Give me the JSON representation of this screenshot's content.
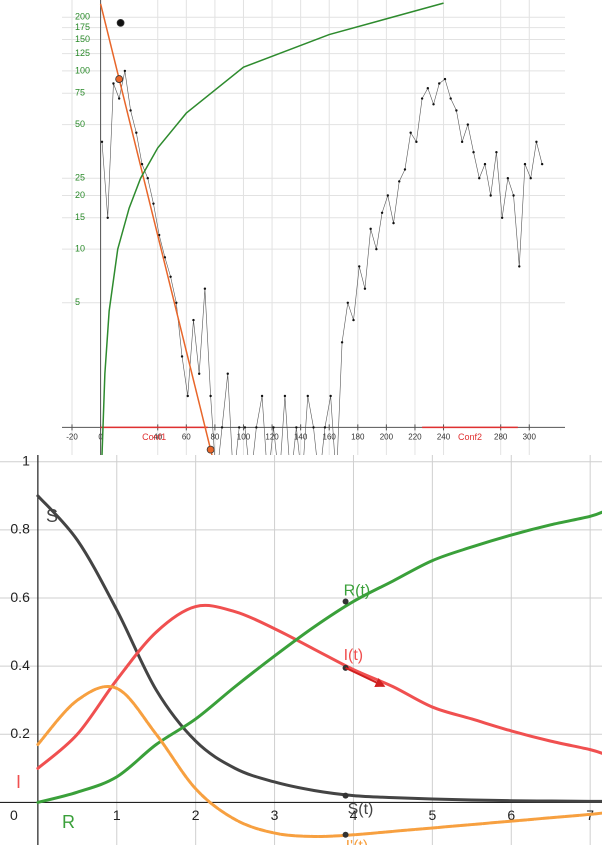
{
  "chart_data": [
    {
      "type": "line",
      "log_scale": true,
      "grid": true,
      "xlim": [
        -27,
        325
      ],
      "ylim": [
        0.7,
        250
      ],
      "xticks": [
        -20,
        0,
        40,
        60,
        80,
        100,
        120,
        140,
        160,
        180,
        200,
        220,
        240,
        280,
        300
      ],
      "yticks": [
        5,
        10,
        15,
        20,
        25,
        50,
        75,
        100,
        125,
        150,
        175,
        200
      ],
      "tick_color": "#2a8a2a",
      "series": [
        {
          "color": "#555555",
          "dots": true,
          "x": [
            1,
            5,
            9,
            13,
            17,
            21,
            25,
            29,
            33,
            37,
            41,
            45,
            49,
            53,
            57,
            61,
            65,
            69,
            73,
            77,
            81,
            85,
            89,
            93,
            97,
            101,
            105,
            109,
            113,
            117,
            121,
            125,
            129,
            133,
            137,
            141,
            145,
            149,
            153,
            157,
            161,
            165,
            169,
            173,
            177,
            181,
            185,
            189,
            193,
            197,
            201,
            205,
            209,
            213,
            217,
            221,
            225,
            229,
            233,
            237,
            241,
            245,
            249,
            253,
            257,
            261,
            265,
            269,
            273,
            277,
            281,
            285,
            289,
            293,
            297,
            301,
            305,
            309
          ],
          "values": [
            40,
            15,
            85,
            70,
            100,
            60,
            45,
            30,
            25,
            18,
            12,
            9,
            7,
            5,
            2.5,
            1.5,
            4,
            2,
            6,
            1.5,
            0.5,
            1,
            2,
            0.5,
            1,
            1,
            0.5,
            1,
            1.5,
            0.5,
            1,
            0.5,
            1.5,
            0.5,
            1,
            0.5,
            1.5,
            1,
            0.5,
            1,
            1.5,
            0.5,
            3,
            5,
            4,
            8,
            6,
            13,
            10,
            16,
            20,
            14,
            24,
            28,
            45,
            40,
            70,
            80,
            65,
            85,
            90,
            70,
            60,
            40,
            50,
            35,
            25,
            30,
            20,
            35,
            15,
            25,
            20,
            8,
            30,
            25,
            40,
            30
          ]
        },
        {
          "color": "#e8662a",
          "x": [
            0,
            80
          ],
          "values": [
            238,
            0.6
          ]
        },
        {
          "color": "#2e8b2e",
          "x": [
            1,
            3,
            6,
            12,
            20,
            28,
            40,
            60,
            100,
            160,
            240
          ],
          "values": [
            0.7,
            2,
            4.5,
            10,
            17,
            25,
            37,
            58,
            105,
            160,
            240
          ]
        }
      ],
      "points": [
        {
          "x": 13,
          "value": 90,
          "color": "#e8662a"
        },
        {
          "x": 77,
          "value": 0.75,
          "color": "#e8662a"
        },
        {
          "x": 14,
          "value": 186,
          "color": "#111111"
        }
      ],
      "spans": [
        {
          "label": "Conf1",
          "start": 0,
          "end": 75
        },
        {
          "label": "Conf2",
          "start": 225,
          "end": 292
        }
      ],
      "span_color": "#e03030"
    },
    {
      "type": "line",
      "grid": true,
      "xlim": [
        -0.48,
        7.15
      ],
      "ylim": [
        -0.125,
        1.02
      ],
      "xticks": [
        0,
        1,
        2,
        3,
        4,
        5,
        6,
        7
      ],
      "yticks": [
        0.2,
        0.4,
        0.6,
        0.8,
        1
      ],
      "x": [
        0,
        0.5,
        1,
        1.5,
        2,
        2.5,
        3,
        3.5,
        4,
        4.5,
        5,
        5.5,
        6,
        6.5,
        7,
        7.2
      ],
      "marker_x": 3.9,
      "series": [
        {
          "name": "S",
          "point_label": "S(t)",
          "color": "#444444",
          "marker_value": 0.02,
          "values": [
            0.9,
            0.77,
            0.565,
            0.33,
            0.18,
            0.1,
            0.06,
            0.035,
            0.02,
            0.014,
            0.01,
            0.007,
            0.005,
            0.004,
            0.003,
            0.003
          ]
        },
        {
          "name": "I",
          "point_label": "I(t)",
          "color": "#f05050",
          "marker_value": 0.395,
          "values": [
            0.1,
            0.2,
            0.36,
            0.5,
            0.575,
            0.56,
            0.51,
            0.45,
            0.39,
            0.34,
            0.28,
            0.245,
            0.21,
            0.18,
            0.155,
            0.14
          ]
        },
        {
          "name": "R",
          "point_label": "R(t)",
          "color": "#3aa03a",
          "marker_value": 0.59,
          "values": [
            0,
            0.03,
            0.075,
            0.17,
            0.245,
            0.34,
            0.43,
            0.515,
            0.59,
            0.65,
            0.71,
            0.75,
            0.785,
            0.815,
            0.84,
            0.857
          ]
        },
        {
          "point_label": "I'(t)",
          "color": "#f7a040",
          "marker_value": -0.095,
          "values": [
            0.17,
            0.3,
            0.335,
            0.2,
            0.04,
            -0.05,
            -0.09,
            -0.1,
            -0.095,
            -0.085,
            -0.075,
            -0.065,
            -0.055,
            -0.045,
            -0.035,
            -0.03
          ]
        }
      ]
    }
  ]
}
